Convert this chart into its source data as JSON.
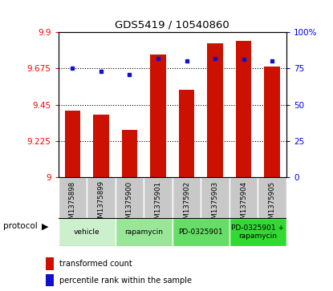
{
  "title": "GDS5419 / 10540860",
  "samples": [
    "GSM1375898",
    "GSM1375899",
    "GSM1375900",
    "GSM1375901",
    "GSM1375902",
    "GSM1375903",
    "GSM1375904",
    "GSM1375905"
  ],
  "bar_values": [
    9.415,
    9.39,
    9.295,
    9.76,
    9.545,
    9.83,
    9.845,
    9.685
  ],
  "percentile_values": [
    75,
    73,
    71,
    82,
    80,
    82,
    81,
    80
  ],
  "protocols": [
    {
      "label": "vehicle",
      "start": 0,
      "end": 2
    },
    {
      "label": "rapamycin",
      "start": 2,
      "end": 4
    },
    {
      "label": "PD-0325901",
      "start": 4,
      "end": 6
    },
    {
      "label": "PD-0325901 +\nrapamycin",
      "start": 6,
      "end": 8
    }
  ],
  "proto_colors": [
    "#ccf0cc",
    "#99e699",
    "#66dd66",
    "#33d933"
  ],
  "ylim_left": [
    9.0,
    9.9
  ],
  "ylim_right": [
    0,
    100
  ],
  "yticks_left": [
    9.0,
    9.225,
    9.45,
    9.675,
    9.9
  ],
  "ytick_labels_left": [
    "9",
    "9.225",
    "9.45",
    "9.675",
    "9.9"
  ],
  "yticks_right": [
    0,
    25,
    50,
    75,
    100
  ],
  "ytick_labels_right": [
    "0",
    "25",
    "50",
    "75",
    "100%"
  ],
  "bar_color": "#cc1100",
  "dot_color": "#1111cc"
}
